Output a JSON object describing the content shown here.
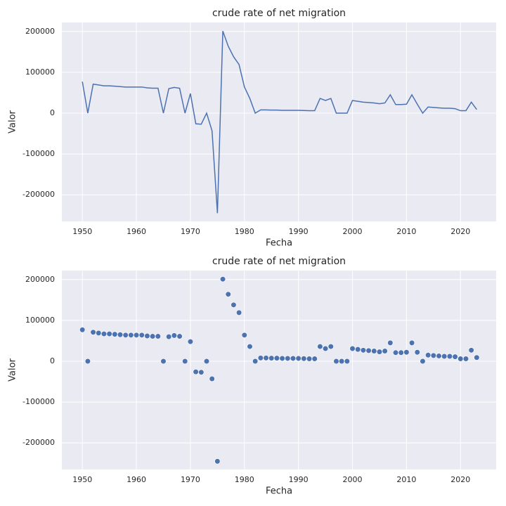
{
  "chart_data": [
    {
      "type": "line",
      "title": "crude rate of net migration",
      "xlabel": "Fecha",
      "ylabel": "Valor",
      "color": "#4c72b0",
      "grid": true,
      "x": [
        1950,
        1951,
        1952,
        1953,
        1954,
        1955,
        1956,
        1957,
        1958,
        1959,
        1960,
        1961,
        1962,
        1963,
        1964,
        1965,
        1966,
        1967,
        1968,
        1969,
        1970,
        1971,
        1972,
        1973,
        1974,
        1975,
        1976,
        1977,
        1978,
        1979,
        1980,
        1981,
        1982,
        1983,
        1984,
        1985,
        1986,
        1987,
        1988,
        1989,
        1990,
        1991,
        1992,
        1993,
        1994,
        1995,
        1996,
        1997,
        1998,
        1999,
        2000,
        2001,
        2002,
        2003,
        2004,
        2005,
        2006,
        2007,
        2008,
        2009,
        2010,
        2011,
        2012,
        2013,
        2014,
        2015,
        2016,
        2017,
        2018,
        2019,
        2020,
        2021,
        2022,
        2023
      ],
      "values": [
        77000,
        0,
        71000,
        69000,
        67000,
        67000,
        66000,
        65000,
        64000,
        64000,
        64000,
        64000,
        62000,
        61000,
        61000,
        0,
        60000,
        63000,
        61000,
        0,
        48000,
        -26000,
        -27000,
        0,
        -43000,
        -245000,
        201000,
        164000,
        138000,
        119000,
        64000,
        36000,
        0,
        8000,
        8000,
        7500,
        7500,
        7000,
        7000,
        7000,
        7000,
        6500,
        6000,
        6000,
        36000,
        31000,
        36000,
        0,
        0,
        0,
        31000,
        29000,
        27000,
        26000,
        25000,
        23000,
        25000,
        45000,
        21000,
        21000,
        22000,
        45000,
        22000,
        0,
        15000,
        14000,
        13000,
        12000,
        12000,
        11000,
        6000,
        6000,
        27000,
        9000
      ],
      "xlim": [
        1946.2,
        2026.6
      ],
      "ylim": [
        -265000,
        222000
      ],
      "xticks": [
        1950,
        1960,
        1970,
        1980,
        1990,
        2000,
        2010,
        2020
      ],
      "yticks": [
        -200000,
        -100000,
        0,
        100000,
        200000
      ]
    },
    {
      "type": "scatter",
      "title": "crude rate of net migration",
      "xlabel": "Fecha",
      "ylabel": "Valor",
      "color": "#4c72b0",
      "grid": true,
      "x": [
        1950,
        1951,
        1952,
        1953,
        1954,
        1955,
        1956,
        1957,
        1958,
        1959,
        1960,
        1961,
        1962,
        1963,
        1964,
        1965,
        1966,
        1967,
        1968,
        1969,
        1970,
        1971,
        1972,
        1973,
        1974,
        1975,
        1976,
        1977,
        1978,
        1979,
        1980,
        1981,
        1982,
        1983,
        1984,
        1985,
        1986,
        1987,
        1988,
        1989,
        1990,
        1991,
        1992,
        1993,
        1994,
        1995,
        1996,
        1997,
        1998,
        1999,
        2000,
        2001,
        2002,
        2003,
        2004,
        2005,
        2006,
        2007,
        2008,
        2009,
        2010,
        2011,
        2012,
        2013,
        2014,
        2015,
        2016,
        2017,
        2018,
        2019,
        2020,
        2021,
        2022,
        2023
      ],
      "values": [
        77000,
        0,
        71000,
        69000,
        67000,
        67000,
        66000,
        65000,
        64000,
        64000,
        64000,
        64000,
        62000,
        61000,
        61000,
        0,
        60000,
        63000,
        61000,
        0,
        48000,
        -26000,
        -27000,
        0,
        -43000,
        -245000,
        201000,
        164000,
        138000,
        119000,
        64000,
        36000,
        0,
        8000,
        8000,
        7500,
        7500,
        7000,
        7000,
        7000,
        7000,
        6500,
        6000,
        6000,
        36000,
        31000,
        36000,
        0,
        0,
        0,
        31000,
        29000,
        27000,
        26000,
        25000,
        23000,
        25000,
        45000,
        21000,
        21000,
        22000,
        45000,
        22000,
        0,
        15000,
        14000,
        13000,
        12000,
        12000,
        11000,
        6000,
        6000,
        27000,
        9000
      ],
      "xlim": [
        1946.2,
        2026.6
      ],
      "ylim": [
        -265000,
        222000
      ],
      "xticks": [
        1950,
        1960,
        1970,
        1980,
        1990,
        2000,
        2010,
        2020
      ],
      "yticks": [
        -200000,
        -100000,
        0,
        100000,
        200000
      ]
    }
  ]
}
